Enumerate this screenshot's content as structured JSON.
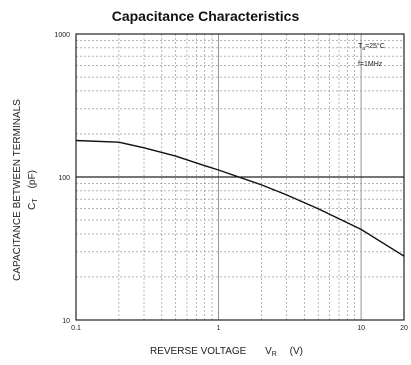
{
  "chart_data": {
    "type": "line",
    "title": "Capacitance Characteristics",
    "xlabel": "REVERSE VOLTAGE",
    "xlabel_symbol": "V",
    "xlabel_subscript": "R",
    "xlabel_unit": "(V)",
    "ylabel": "CAPACITANCE BETWEEN TERMINALS",
    "ylabel_symbol": "C",
    "ylabel_subscript": "T",
    "ylabel_unit": "(pF)",
    "x_scale": "log",
    "y_scale": "log",
    "xlim": [
      0.1,
      20
    ],
    "ylim": [
      10,
      1000
    ],
    "x_ticks": [
      "0.1",
      "1",
      "10",
      "20"
    ],
    "x_tick_values": [
      0.1,
      1,
      10,
      20
    ],
    "y_ticks": [
      "10",
      "100",
      "1000"
    ],
    "y_tick_values": [
      10,
      100,
      1000
    ],
    "grid": true,
    "annotations": {
      "temp": "T",
      "temp_sub": "a",
      "temp_value": "=25°C",
      "freq": "f=1MHz"
    },
    "series": [
      {
        "values": [
          {
            "x": 0.1,
            "y": 180
          },
          {
            "x": 0.2,
            "y": 175
          },
          {
            "x": 0.3,
            "y": 160
          },
          {
            "x": 0.5,
            "y": 140
          },
          {
            "x": 0.8,
            "y": 120
          },
          {
            "x": 1.0,
            "y": 112
          },
          {
            "x": 2.0,
            "y": 88
          },
          {
            "x": 3.0,
            "y": 75
          },
          {
            "x": 5.0,
            "y": 60
          },
          {
            "x": 10,
            "y": 43
          },
          {
            "x": 20,
            "y": 28
          }
        ]
      }
    ],
    "colors": {
      "line": "#111111",
      "grid": "#888888",
      "frame": "#222222"
    }
  }
}
